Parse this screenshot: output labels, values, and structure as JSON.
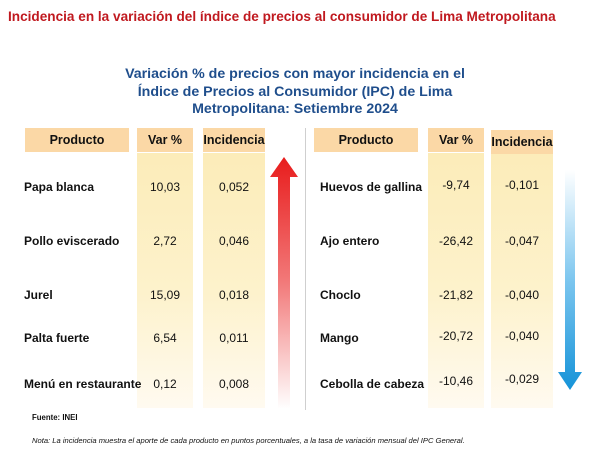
{
  "top_title": "Incidencia en la variación del índice de precios al consumidor de Lima Metropolitana",
  "subtitle_lines": [
    "Variación % de precios con mayor incidencia en el",
    "Índice de Precios al Consumidor (IPC) de Lima",
    "Metropolitana: Setiembre 2024"
  ],
  "headers": {
    "producto": "Producto",
    "var": "Var %",
    "incidencia": "Incidencia"
  },
  "left_rows": [
    {
      "producto": "Papa blanca",
      "var": "10,03",
      "incidencia": "0,052"
    },
    {
      "producto": "Pollo eviscerado",
      "var": "2,72",
      "incidencia": "0,046"
    },
    {
      "producto": "Jurel",
      "var": "15,09",
      "incidencia": "0,018"
    },
    {
      "producto": "Palta fuerte",
      "var": "6,54",
      "incidencia": "0,011"
    },
    {
      "producto": "Menú en restaurante",
      "var": "0,12",
      "incidencia": "0,008"
    }
  ],
  "right_rows": [
    {
      "producto": "Huevos de gallina",
      "var": "-9,74",
      "incidencia": "-0,101"
    },
    {
      "producto": "Ajo entero",
      "var": "-26,42",
      "incidencia": "-0,047"
    },
    {
      "producto": "Choclo",
      "var": "-21,82",
      "incidencia": "-0,040"
    },
    {
      "producto": "Mango",
      "var": "-20,72",
      "incidencia": "-0,040"
    },
    {
      "producto": "Cebolla de cabeza",
      "var": "-10,46",
      "incidencia": "-0,029"
    }
  ],
  "arrows": {
    "up": {
      "icon": "arrow-up-icon",
      "color": "#e02020"
    },
    "down": {
      "icon": "arrow-down-icon",
      "color": "#1e9be0"
    }
  },
  "footer": {
    "source": "Fuente: INEI",
    "note": "Nota: La incidencia muestra el aporte de cada producto en puntos porcentuales, a la tasa de variación mensual del IPC General."
  }
}
